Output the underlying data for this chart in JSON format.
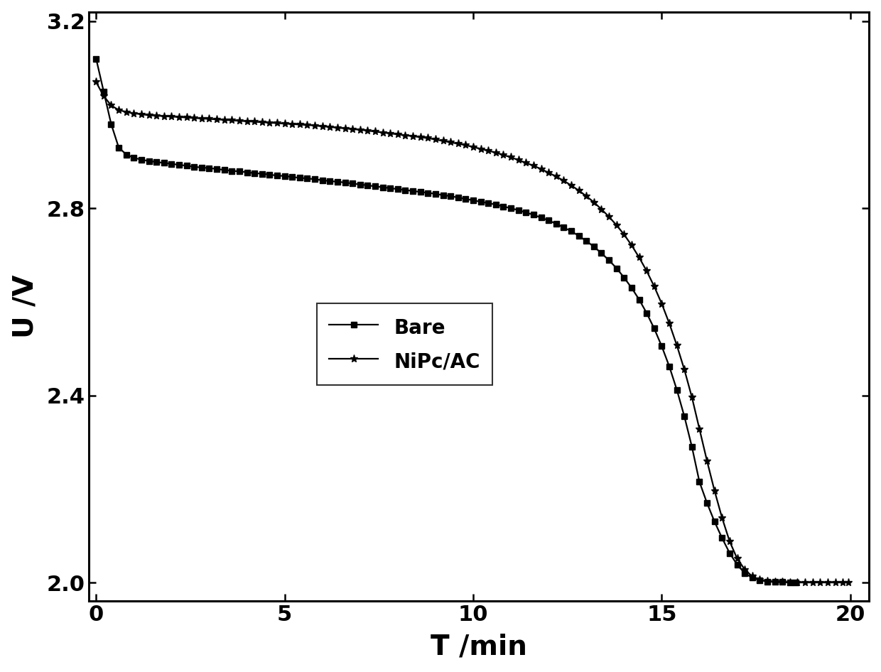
{
  "title": "",
  "xlabel": "T /min",
  "ylabel": "U /V",
  "xlim": [
    -0.2,
    20.5
  ],
  "ylim": [
    1.96,
    3.22
  ],
  "xticks": [
    0,
    5,
    10,
    15,
    20
  ],
  "yticks": [
    2.0,
    2.4,
    2.8,
    3.2
  ],
  "background_color": "#ffffff",
  "bare_x": [
    0.0,
    0.2,
    0.4,
    0.6,
    0.8,
    1.0,
    1.2,
    1.4,
    1.6,
    1.8,
    2.0,
    2.2,
    2.4,
    2.6,
    2.8,
    3.0,
    3.2,
    3.4,
    3.6,
    3.8,
    4.0,
    4.2,
    4.4,
    4.6,
    4.8,
    5.0,
    5.2,
    5.4,
    5.6,
    5.8,
    6.0,
    6.2,
    6.4,
    6.6,
    6.8,
    7.0,
    7.2,
    7.4,
    7.6,
    7.8,
    8.0,
    8.2,
    8.4,
    8.6,
    8.8,
    9.0,
    9.2,
    9.4,
    9.6,
    9.8,
    10.0,
    10.2,
    10.4,
    10.6,
    10.8,
    11.0,
    11.2,
    11.4,
    11.6,
    11.8,
    12.0,
    12.2,
    12.4,
    12.6,
    12.8,
    13.0,
    13.2,
    13.4,
    13.6,
    13.8,
    14.0,
    14.2,
    14.4,
    14.6,
    14.8,
    15.0,
    15.2,
    15.4,
    15.6,
    15.8,
    16.0,
    16.2,
    16.4,
    16.6,
    16.8,
    17.0,
    17.2,
    17.4,
    17.6,
    17.8,
    18.0,
    18.2,
    18.4,
    18.55
  ],
  "bare_y": [
    3.12,
    3.05,
    2.98,
    2.93,
    2.915,
    2.908,
    2.904,
    2.901,
    2.899,
    2.897,
    2.895,
    2.893,
    2.891,
    2.889,
    2.887,
    2.886,
    2.884,
    2.882,
    2.88,
    2.879,
    2.877,
    2.875,
    2.874,
    2.872,
    2.87,
    2.869,
    2.867,
    2.865,
    2.864,
    2.862,
    2.86,
    2.858,
    2.857,
    2.855,
    2.853,
    2.851,
    2.849,
    2.847,
    2.845,
    2.843,
    2.841,
    2.839,
    2.837,
    2.835,
    2.833,
    2.831,
    2.828,
    2.826,
    2.823,
    2.82,
    2.817,
    2.814,
    2.811,
    2.808,
    2.804,
    2.8,
    2.796,
    2.791,
    2.786,
    2.78,
    2.774,
    2.767,
    2.759,
    2.751,
    2.741,
    2.73,
    2.718,
    2.704,
    2.689,
    2.672,
    2.652,
    2.63,
    2.605,
    2.576,
    2.543,
    2.505,
    2.462,
    2.412,
    2.355,
    2.29,
    2.215,
    2.17,
    2.13,
    2.095,
    2.063,
    2.038,
    2.02,
    2.01,
    2.005,
    2.002,
    2.001,
    2.001,
    2.0,
    2.0
  ],
  "nipc_x": [
    0.0,
    0.2,
    0.4,
    0.6,
    0.8,
    1.0,
    1.2,
    1.4,
    1.6,
    1.8,
    2.0,
    2.2,
    2.4,
    2.6,
    2.8,
    3.0,
    3.2,
    3.4,
    3.6,
    3.8,
    4.0,
    4.2,
    4.4,
    4.6,
    4.8,
    5.0,
    5.2,
    5.4,
    5.6,
    5.8,
    6.0,
    6.2,
    6.4,
    6.6,
    6.8,
    7.0,
    7.2,
    7.4,
    7.6,
    7.8,
    8.0,
    8.2,
    8.4,
    8.6,
    8.8,
    9.0,
    9.2,
    9.4,
    9.6,
    9.8,
    10.0,
    10.2,
    10.4,
    10.6,
    10.8,
    11.0,
    11.2,
    11.4,
    11.6,
    11.8,
    12.0,
    12.2,
    12.4,
    12.6,
    12.8,
    13.0,
    13.2,
    13.4,
    13.6,
    13.8,
    14.0,
    14.2,
    14.4,
    14.6,
    14.8,
    15.0,
    15.2,
    15.4,
    15.6,
    15.8,
    16.0,
    16.2,
    16.4,
    16.6,
    16.8,
    17.0,
    17.2,
    17.4,
    17.6,
    17.8,
    18.0,
    18.2,
    18.4,
    18.6,
    18.8,
    19.0,
    19.2,
    19.4,
    19.6,
    19.8,
    19.95
  ],
  "nipc_y": [
    3.07,
    3.04,
    3.02,
    3.01,
    3.006,
    3.003,
    3.001,
    2.999,
    2.998,
    2.997,
    2.996,
    2.995,
    2.994,
    2.993,
    2.992,
    2.991,
    2.99,
    2.989,
    2.988,
    2.987,
    2.986,
    2.985,
    2.984,
    2.983,
    2.982,
    2.981,
    2.98,
    2.979,
    2.978,
    2.977,
    2.975,
    2.974,
    2.972,
    2.971,
    2.969,
    2.968,
    2.966,
    2.964,
    2.962,
    2.96,
    2.958,
    2.956,
    2.954,
    2.952,
    2.95,
    2.947,
    2.944,
    2.941,
    2.938,
    2.935,
    2.931,
    2.927,
    2.923,
    2.919,
    2.914,
    2.909,
    2.903,
    2.897,
    2.891,
    2.884,
    2.876,
    2.868,
    2.859,
    2.849,
    2.838,
    2.826,
    2.813,
    2.798,
    2.782,
    2.764,
    2.744,
    2.721,
    2.695,
    2.666,
    2.633,
    2.596,
    2.554,
    2.507,
    2.455,
    2.396,
    2.328,
    2.26,
    2.196,
    2.138,
    2.088,
    2.051,
    2.028,
    2.013,
    2.006,
    2.003,
    2.001,
    2.001,
    2.0,
    2.0,
    2.0,
    2.0,
    2.0,
    2.0,
    2.0,
    2.0,
    2.0
  ],
  "line_color": "#000000",
  "linewidth": 1.6,
  "markersize_square": 6,
  "markersize_star": 8,
  "legend_fontsize": 20,
  "axis_label_fontsize": 28,
  "tick_fontsize": 22
}
